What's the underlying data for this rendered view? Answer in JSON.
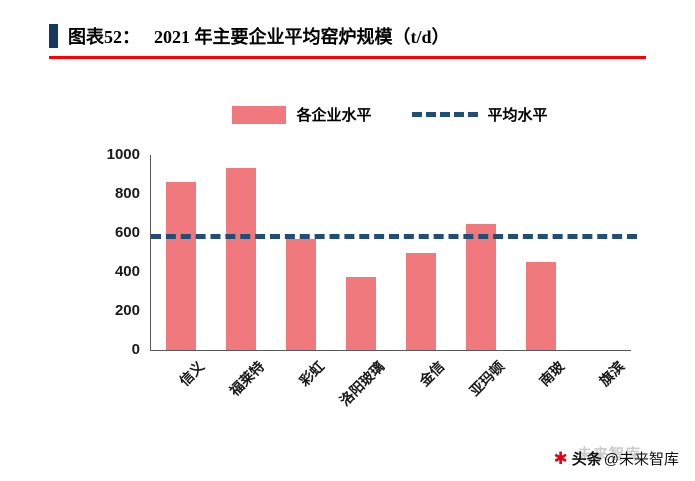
{
  "header": {
    "label": "图表52：",
    "title": "2021 年主要企业平均窑炉规模（t/d）"
  },
  "legend": {
    "series_label": "各企业水平",
    "average_label": "平均水平"
  },
  "chart_data": {
    "type": "bar",
    "title": "2021 年主要企业平均窑炉规模（t/d）",
    "categories": [
      "信义",
      "福莱特",
      "彩虹",
      "洛阳玻璃",
      "金信",
      "亚玛顿",
      "南玻",
      "旗滨"
    ],
    "values": [
      860,
      935,
      570,
      375,
      495,
      645,
      450,
      0
    ],
    "average_line": 580,
    "ylim": [
      0,
      1000
    ],
    "yticks": [
      0,
      200,
      400,
      600,
      800,
      1000
    ],
    "xlabel": "",
    "ylabel": "",
    "legend": [
      "各企业水平",
      "平均水平"
    ],
    "legend_position": "top",
    "grid": false,
    "bar_color": "#F0797E",
    "average_color": "#1F4E79"
  },
  "colors": {
    "title_rule": "#FF0000",
    "title_bullet": "#17375E",
    "logo_red": "#E60012"
  },
  "watermark": {
    "icon": "✱",
    "source": "头条",
    "handle": "@未来智库",
    "ghost": "未来智库"
  }
}
